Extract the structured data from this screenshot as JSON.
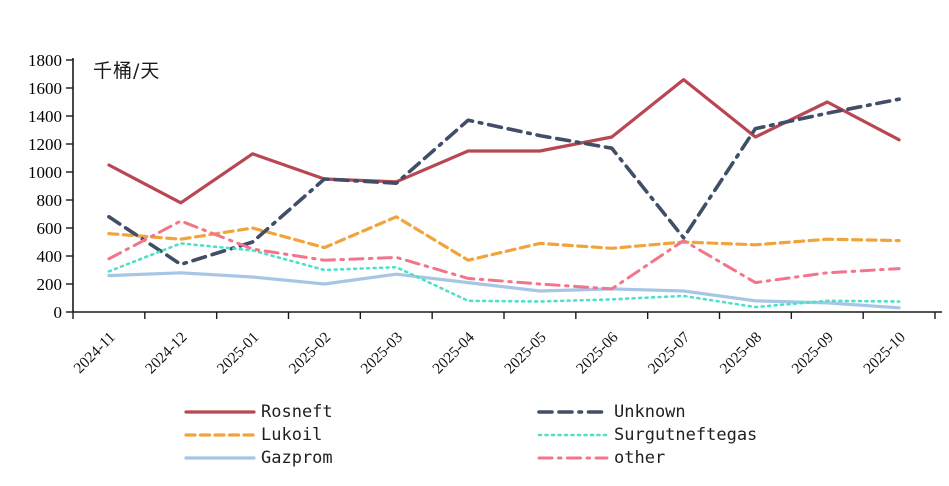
{
  "chart_data": {
    "type": "line",
    "title": "",
    "ylabel": "千桶/天",
    "xlabel": "",
    "ylim": [
      0,
      1800
    ],
    "y_ticks": [
      0,
      200,
      400,
      600,
      800,
      1000,
      1200,
      1400,
      1600,
      1800
    ],
    "grid": false,
    "legend_position": "bottom",
    "x_labels": [
      "2024-11",
      "2024-12",
      "2025-01",
      "2025-02",
      "2025-03",
      "2025-04",
      "2025-05",
      "2025-06",
      "2025-07",
      "2025-08",
      "2025-09",
      "2025-10"
    ],
    "series": [
      {
        "name": "Rosneft",
        "color": "#b94752",
        "style": "solid",
        "dash": "",
        "width": 3.2,
        "values": [
          1050,
          780,
          1130,
          950,
          930,
          1150,
          1150,
          1250,
          1660,
          1250,
          1500,
          1230
        ]
      },
      {
        "name": "Lukoil",
        "color": "#f1a43c",
        "style": "dashed",
        "dash": "9 5.5",
        "width": 3.2,
        "values": [
          560,
          520,
          600,
          460,
          680,
          370,
          490,
          455,
          500,
          480,
          520,
          510
        ]
      },
      {
        "name": "Gazprom",
        "color": "#a7c6e5",
        "style": "solid",
        "dash": "",
        "width": 3.2,
        "values": [
          260,
          280,
          250,
          200,
          270,
          210,
          150,
          165,
          150,
          80,
          65,
          30
        ]
      },
      {
        "name": "Unknown",
        "color": "#404e68",
        "style": "dashdashdot",
        "dash": "13 7 13 7 2.5 7",
        "width": 3.6,
        "values": [
          680,
          340,
          500,
          950,
          920,
          1370,
          1260,
          1170,
          530,
          1310,
          1420,
          1520
        ]
      },
      {
        "name": "Surgutneftegas",
        "color": "#4ee0c9",
        "style": "dotted",
        "dash": "2 4.5",
        "width": 2.6,
        "values": [
          290,
          490,
          440,
          300,
          320,
          80,
          75,
          90,
          115,
          35,
          80,
          75
        ]
      },
      {
        "name": "other",
        "color": "#f27589",
        "style": "dashdot",
        "dash": "13 6.5 2.5 6.5",
        "width": 3.0,
        "values": [
          380,
          650,
          450,
          370,
          390,
          240,
          200,
          165,
          510,
          210,
          280,
          310
        ]
      }
    ],
    "legend_columns": [
      [
        "Rosneft",
        "Lukoil",
        "Gazprom"
      ],
      [
        "Unknown",
        "Surgutneftegas",
        "other"
      ]
    ]
  }
}
